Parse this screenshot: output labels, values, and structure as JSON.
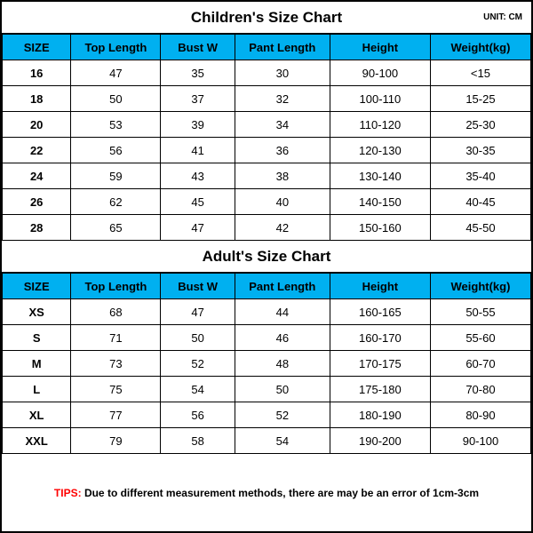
{
  "unit_label": "UNIT: CM",
  "children": {
    "title": "Children's Size Chart",
    "columns": [
      "SIZE",
      "Top Length",
      "Bust W",
      "Pant Length",
      "Height",
      "Weight(kg)"
    ],
    "rows": [
      [
        "16",
        "47",
        "35",
        "30",
        "90-100",
        "<15"
      ],
      [
        "18",
        "50",
        "37",
        "32",
        "100-110",
        "15-25"
      ],
      [
        "20",
        "53",
        "39",
        "34",
        "110-120",
        "25-30"
      ],
      [
        "22",
        "56",
        "41",
        "36",
        "120-130",
        "30-35"
      ],
      [
        "24",
        "59",
        "43",
        "38",
        "130-140",
        "35-40"
      ],
      [
        "26",
        "62",
        "45",
        "40",
        "140-150",
        "40-45"
      ],
      [
        "28",
        "65",
        "47",
        "42",
        "150-160",
        "45-50"
      ]
    ]
  },
  "adult": {
    "title": "Adult's Size Chart",
    "columns": [
      "SIZE",
      "Top Length",
      "Bust W",
      "Pant Length",
      "Height",
      "Weight(kg)"
    ],
    "rows": [
      [
        "XS",
        "68",
        "47",
        "44",
        "160-165",
        "50-55"
      ],
      [
        "S",
        "71",
        "50",
        "46",
        "160-170",
        "55-60"
      ],
      [
        "M",
        "73",
        "52",
        "48",
        "170-175",
        "60-70"
      ],
      [
        "L",
        "75",
        "54",
        "50",
        "175-180",
        "70-80"
      ],
      [
        "XL",
        "77",
        "56",
        "52",
        "180-190",
        "80-90"
      ],
      [
        "XXL",
        "79",
        "58",
        "54",
        "190-200",
        "90-100"
      ]
    ]
  },
  "tips": {
    "label": "TIPS: ",
    "body": "Due to different measurement methods, there are may be an error of 1cm-3cm"
  },
  "colors": {
    "header_bg": "#00b0f0",
    "border": "#000000",
    "tips_label": "#ff0000",
    "background": "#ffffff"
  }
}
